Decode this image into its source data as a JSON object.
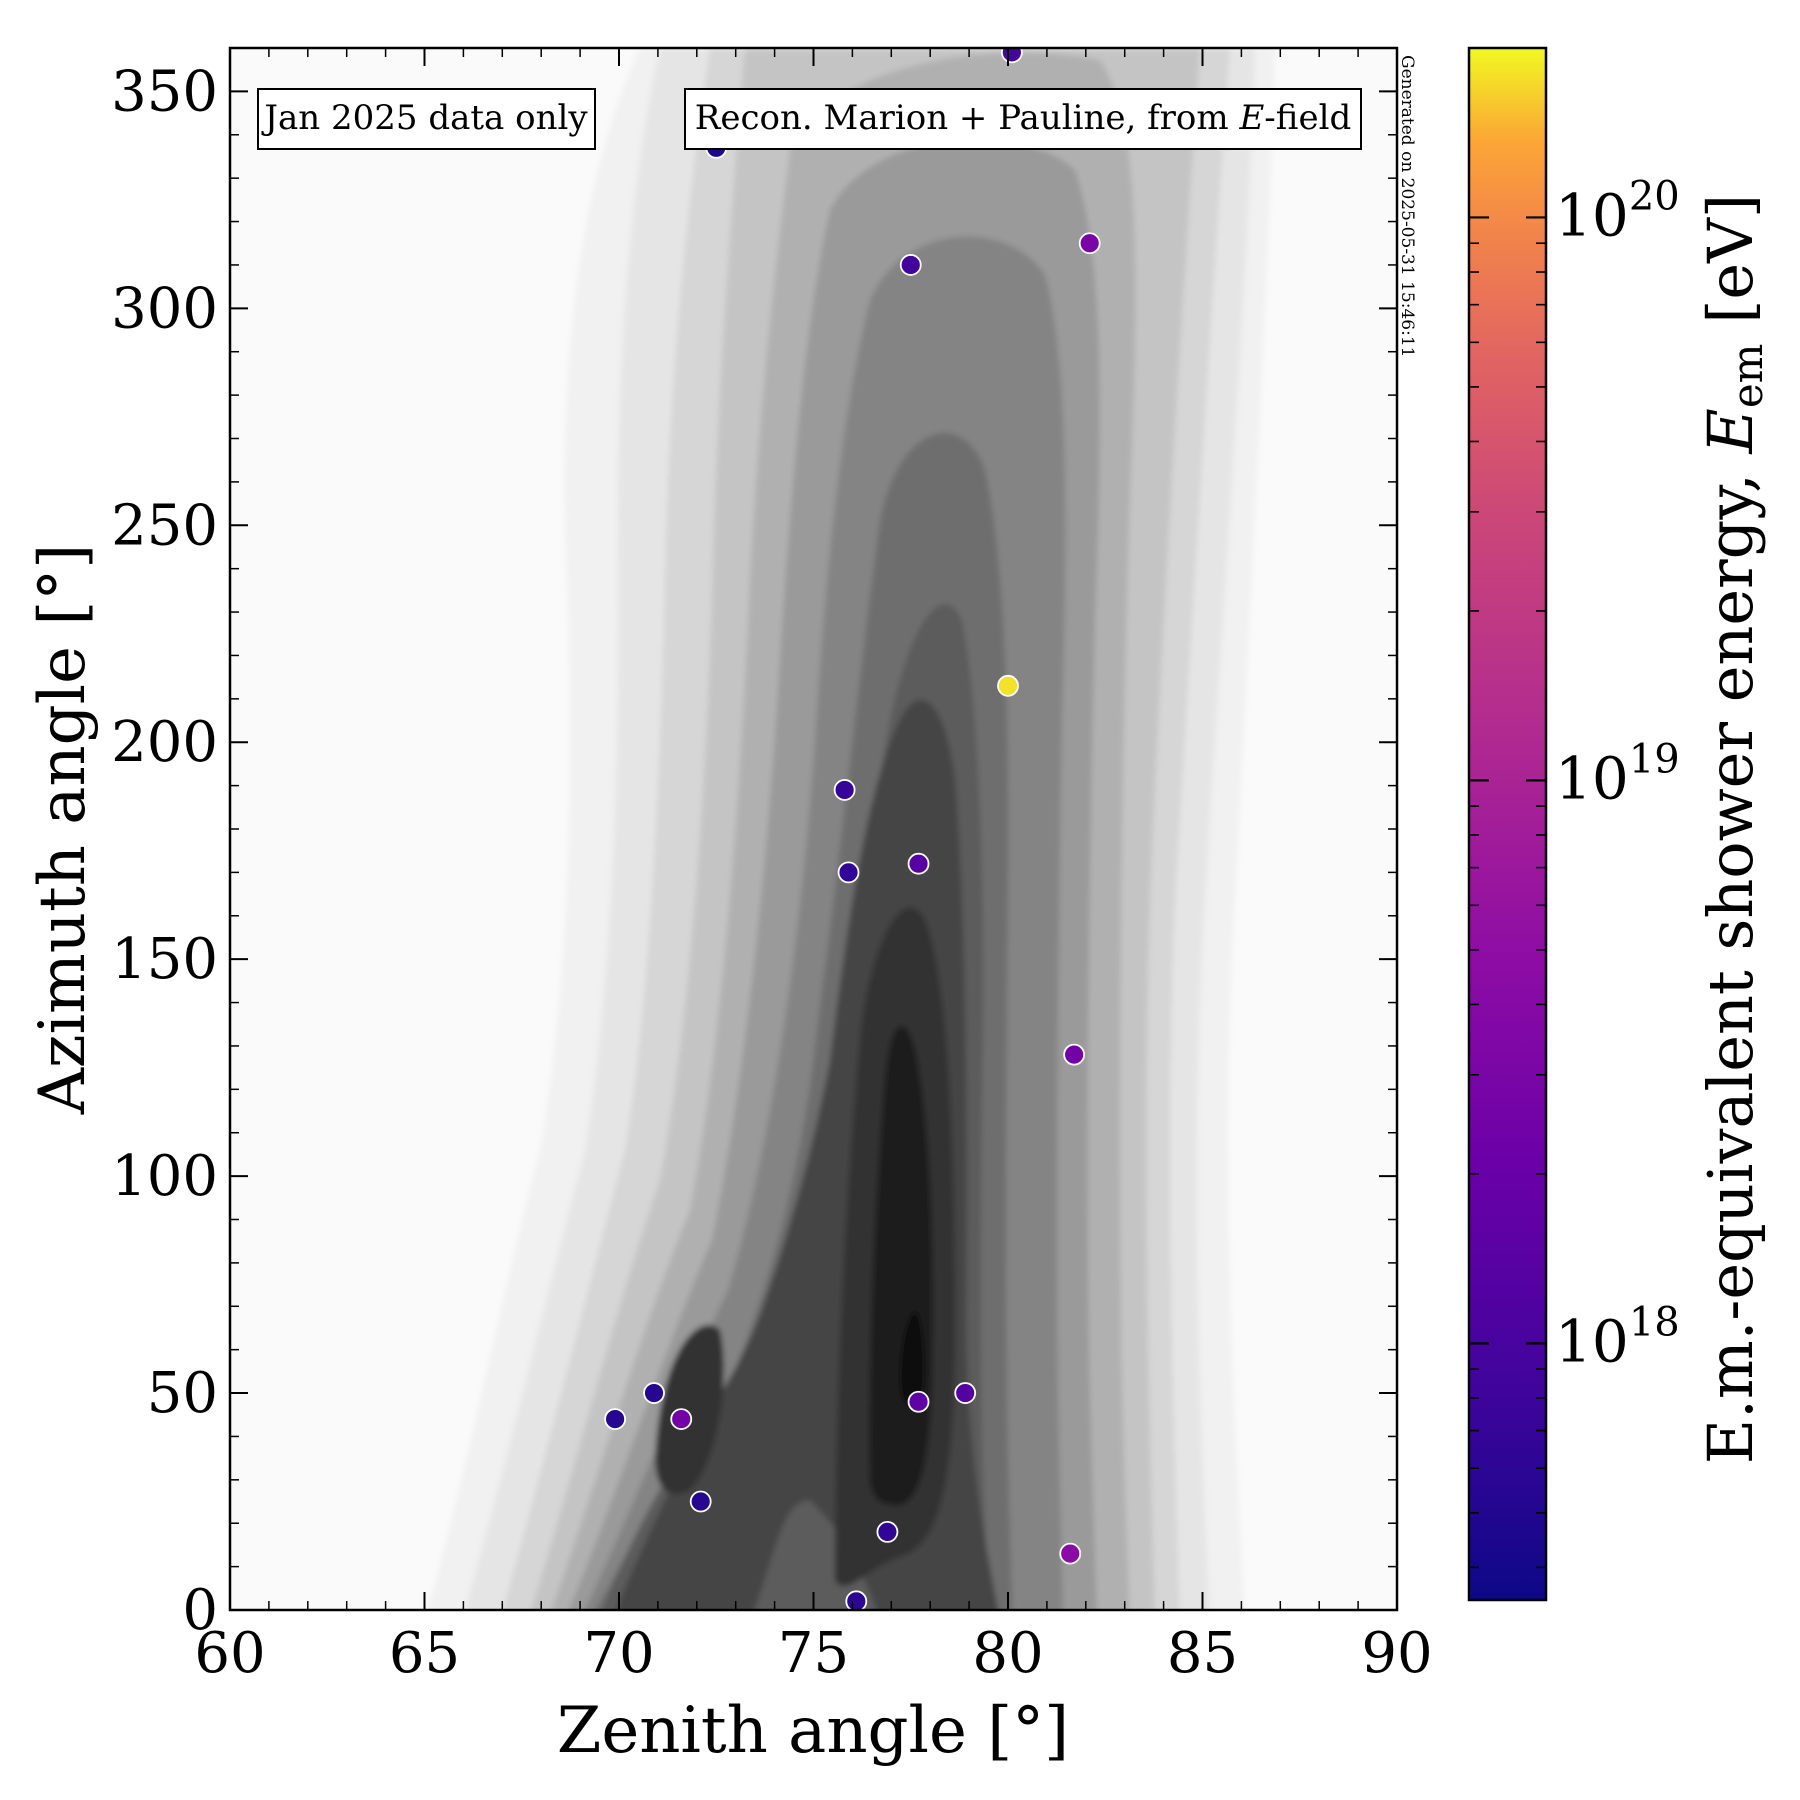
{
  "chart_data": {
    "type": "scatter",
    "xlabel": "Zenith angle [°]",
    "ylabel": "Azimuth angle [°]",
    "xlim": [
      60,
      90
    ],
    "ylim": [
      0,
      360
    ],
    "x_ticks": [
      "60",
      "65",
      "70",
      "75",
      "80",
      "85",
      "90"
    ],
    "x_tick_values": [
      60,
      65,
      70,
      75,
      80,
      85,
      90
    ],
    "y_ticks": [
      "0",
      "50",
      "100",
      "150",
      "200",
      "250",
      "300",
      "350"
    ],
    "y_tick_values": [
      0,
      50,
      100,
      150,
      200,
      250,
      300,
      350
    ],
    "annotations": {
      "left_box": "Jan 2025 data only",
      "right_box_prefix": "Recon. Marion + Pauline, from ",
      "right_box_italic": "E",
      "right_box_suffix": "-field",
      "generated": "Generated on 2025-05-31 15:46:11"
    },
    "colorbar": {
      "colormap": "plasma",
      "scale": "log",
      "label_prefix": "E.m.-equivalent shower energy, ",
      "label_symbol": "E",
      "label_subscript": "em",
      "label_suffix": " [eV]",
      "range": [
        3.5e+17,
        2e+20
      ],
      "ticks": [
        {
          "base": "10",
          "exp": "18",
          "value": 1e+18
        },
        {
          "base": "10",
          "exp": "19",
          "value": 1e+19
        },
        {
          "base": "10",
          "exp": "20",
          "value": 1e+20
        }
      ]
    },
    "background": {
      "type": "filled density contours",
      "colormap": "greys"
    },
    "points": [
      {
        "zenith": 80.1,
        "azimuth": 359,
        "energy": 9e+17
      },
      {
        "zenith": 72.5,
        "azimuth": 337,
        "energy": 4.5e+17
      },
      {
        "zenith": 77.5,
        "azimuth": 310,
        "energy": 9e+17
      },
      {
        "zenith": 82.1,
        "azimuth": 315,
        "energy": 3e+18
      },
      {
        "zenith": 80.0,
        "azimuth": 213,
        "energy": 1.8e+20
      },
      {
        "zenith": 75.8,
        "azimuth": 189,
        "energy": 7e+17
      },
      {
        "zenith": 75.9,
        "azimuth": 170,
        "energy": 6.5e+17
      },
      {
        "zenith": 77.7,
        "azimuth": 172,
        "energy": 1.4e+18
      },
      {
        "zenith": 81.7,
        "azimuth": 128,
        "energy": 2.5e+18
      },
      {
        "zenith": 70.9,
        "azimuth": 50,
        "energy": 5.5e+17
      },
      {
        "zenith": 69.9,
        "azimuth": 44,
        "energy": 5.5e+17
      },
      {
        "zenith": 71.6,
        "azimuth": 44,
        "energy": 2.5e+18
      },
      {
        "zenith": 77.7,
        "azimuth": 48,
        "energy": 1.6e+18
      },
      {
        "zenith": 78.9,
        "azimuth": 50,
        "energy": 1.3e+18
      },
      {
        "zenith": 72.1,
        "azimuth": 25,
        "energy": 5.5e+17
      },
      {
        "zenith": 76.9,
        "azimuth": 18,
        "energy": 6.5e+17
      },
      {
        "zenith": 81.6,
        "azimuth": 13,
        "energy": 4.5e+18
      },
      {
        "zenith": 76.1,
        "azimuth": 2,
        "energy": 6e+17
      }
    ]
  }
}
